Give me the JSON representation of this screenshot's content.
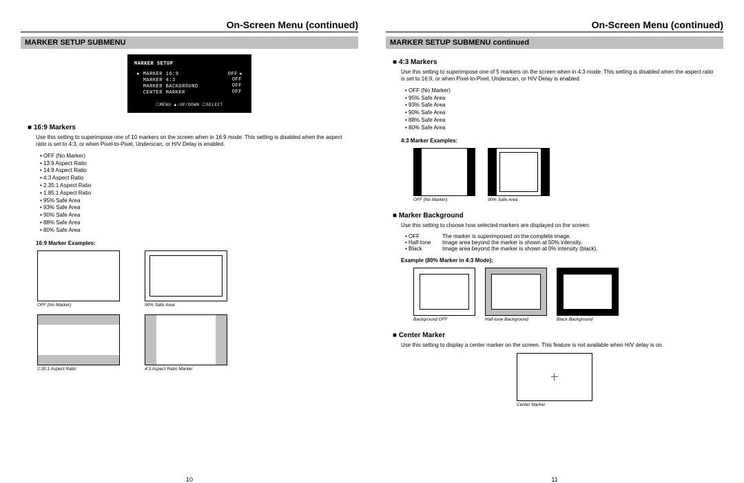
{
  "header_title": "On-Screen Menu (continued)",
  "left": {
    "bar": "MARKER SETUP SUBMENU",
    "menu": {
      "title": "MARKER SETUP",
      "rows": [
        {
          "l": "MARKER 16:9",
          "r": "OFF",
          "sel": true
        },
        {
          "l": "MARKER 4:3",
          "r": "OFF"
        },
        {
          "l": "MARKER BACKGROUND",
          "r": "OFF"
        },
        {
          "l": "CENTER MARKER",
          "r": "OFF"
        }
      ],
      "hint": "☐MENU ▲↑UP/DOWN ☐SELECT"
    },
    "s1_head": "16:9 Markers",
    "s1_body": "Use this setting to superimpose one of 10 markers on the screen when in 16:9 mode. This setting is disabled when the aspect ratio is set to 4:3, or when Pixel-to-Pixel, Underscan, or H/V Delay is enabled.",
    "s1_list": [
      "OFF (No Marker)",
      "13:9 Aspect Ratio",
      "14:9 Aspect Ratio",
      "4:3 Aspect Ratio",
      "2.35:1 Aspect Ratio",
      "1.85:1 Aspect Ratio",
      "95% Safe Area",
      "93% Safe Area",
      "90% Safe Area",
      "88% Safe Area",
      "80% Safe Area"
    ],
    "s1_ex_label": "16:9 Marker Examples:",
    "s1_figs1": [
      {
        "cap": "OFF (No Marker)"
      },
      {
        "cap": "90% Safe Area"
      }
    ],
    "s1_figs2": [
      {
        "cap": "2.35:1 Aspect Ratio"
      },
      {
        "cap": "4:3 Aspect Ratio Marker"
      }
    ],
    "pagenum": "10"
  },
  "right": {
    "bar": "MARKER SETUP SUBMENU continued",
    "s1_head": "4:3 Markers",
    "s1_body": "Use this setting to superimpose one of 5 markers on the screen when in 4:3 mode. This setting is disabled when the aspect ratio is set to 16:9, or when Pixel-to-Pixel, Underscan, or H/V Delay is enabled.",
    "s1_list": [
      "OFF (No Marker)",
      "95% Safe Area",
      "93% Safe Area",
      "90% Safe Area",
      "88% Safe Area",
      "80% Safe Area"
    ],
    "s1_ex_label": "4:3 Marker Examples:",
    "s1_figs": [
      {
        "cap": "OFF (No Marker)"
      },
      {
        "cap": "90% Safe Area"
      }
    ],
    "s2_head": "Marker Background",
    "s2_body": "Use this setting to choose how selected markers are displayed on the screen:",
    "s2_opts": [
      {
        "k": "OFF",
        "v": "The marker is superimposed on the complete image."
      },
      {
        "k": "Half-tone",
        "v": "Image area beyond the marker is shown at 50% intensity."
      },
      {
        "k": "Black",
        "v": "Image area beyond the marker is shown at 0% intensity (black)."
      }
    ],
    "s2_ex_label": "Example (80% Marker in 4:3 Mode):",
    "s2_figs": [
      {
        "cap": "Background OFF"
      },
      {
        "cap": "Half-tone Background"
      },
      {
        "cap": "Black Background"
      }
    ],
    "s3_head": "Center Marker",
    "s3_body": "Use this setting to display a center marker on the screen. This feature is not available when H/V delay is on.",
    "s3_fig": {
      "cap": "Center Marker"
    },
    "pagenum": "11"
  }
}
